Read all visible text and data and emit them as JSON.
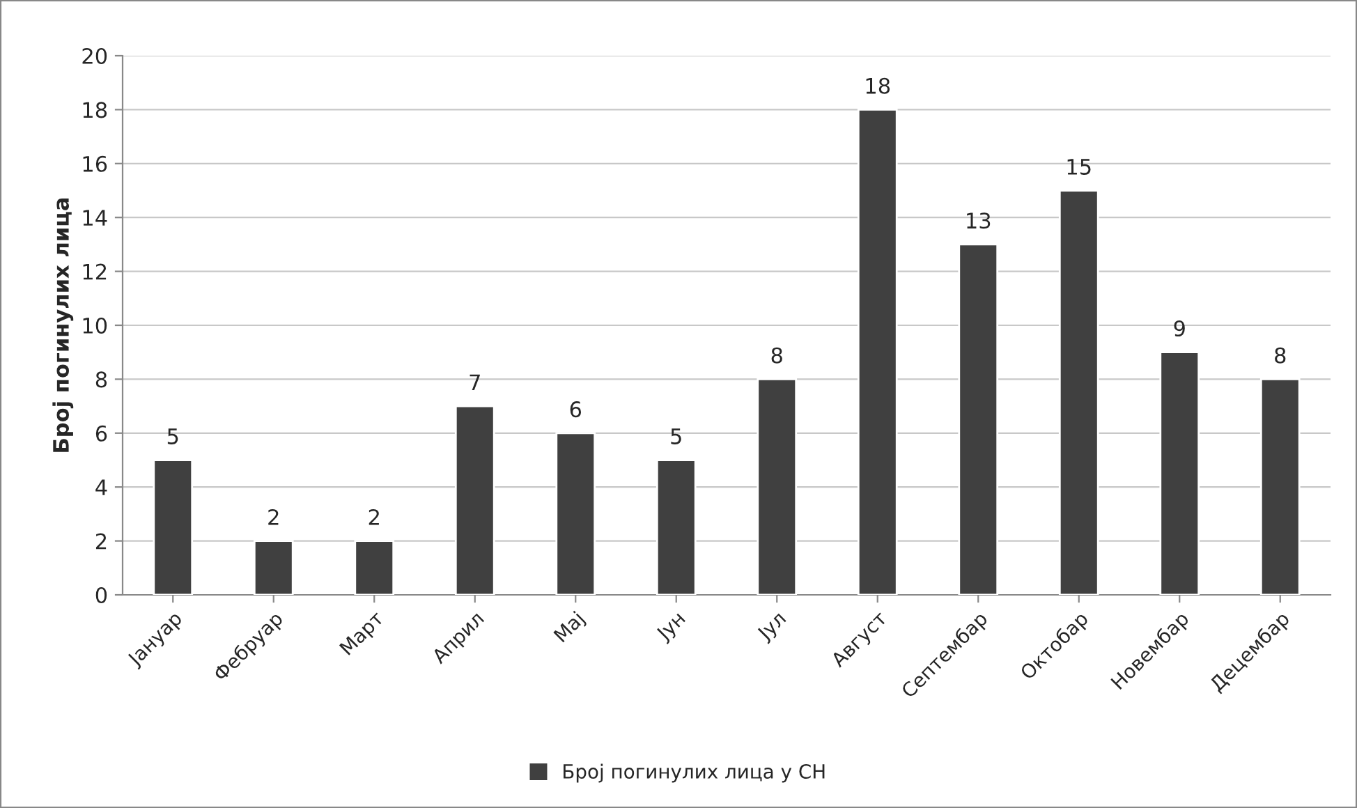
{
  "chart_data": {
    "type": "bar",
    "ylabel": "Број погинулих лица",
    "categories": [
      "Јануар",
      "Фебруар",
      "Март",
      "Април",
      "Мај",
      "Јун",
      "Јул",
      "Август",
      "Септембар",
      "Октобар",
      "Новембар",
      "Децембар"
    ],
    "series": [
      {
        "name": "Број погинулих лица у СН",
        "color": "#404040",
        "values": [
          5,
          2,
          2,
          7,
          6,
          5,
          8,
          18,
          13,
          15,
          9,
          8
        ]
      }
    ],
    "ylim": [
      0,
      20
    ],
    "yticks": [
      0,
      2,
      4,
      6,
      8,
      10,
      12,
      14,
      16,
      18,
      20
    ],
    "grid": "y",
    "legend": "bottom",
    "data_labels": true
  }
}
